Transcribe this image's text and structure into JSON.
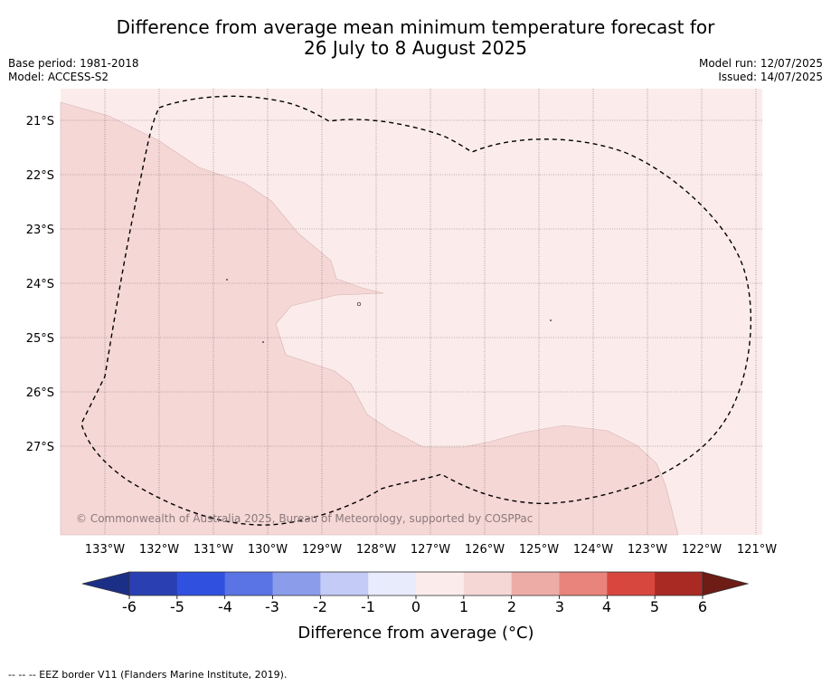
{
  "title": {
    "line1": "Difference from average mean minimum temperature forecast for",
    "line2": "26 July to 8 August 2025"
  },
  "meta_left": {
    "base_period": "Base period: 1981-2018",
    "model": "Model: ACCESS-S2"
  },
  "meta_right": {
    "model_run": "Model run: 12/07/2025",
    "issued": "Issued: 14/07/2025"
  },
  "map": {
    "lat_labels": [
      "21°S",
      "22°S",
      "23°S",
      "24°S",
      "25°S",
      "26°S",
      "27°S"
    ],
    "lon_labels": [
      "133°W",
      "132°W",
      "131°W",
      "130°W",
      "129°W",
      "128°W",
      "127°W",
      "126°W",
      "125°W",
      "124°W",
      "123°W",
      "122°W",
      "121°W"
    ],
    "copyright": "© Commonwealth of Australia 2025, Bureau of Meteorology, supported by COSPPac",
    "region_colors": {
      "zero_to_one": "#fbeceb",
      "one_to_two": "#f5d7d6"
    }
  },
  "colorbar": {
    "ticks": [
      "-6",
      "-5",
      "-4",
      "-3",
      "-2",
      "-1",
      "0",
      "1",
      "2",
      "3",
      "4",
      "5",
      "6"
    ],
    "colors": [
      "#1c2f87",
      "#2a40b2",
      "#3051e0",
      "#5a73e5",
      "#8b9ceb",
      "#c4cbf6",
      "#e8ebfb",
      "#fbeceb",
      "#f5d7d6",
      "#eeaca7",
      "#e8847b",
      "#d8473d",
      "#a92a23",
      "#6d1c16"
    ],
    "label": "Difference from average (°C)"
  },
  "footnote": "--  --  -- EEZ border V11 (Flanders Marine Institute, 2019)."
}
